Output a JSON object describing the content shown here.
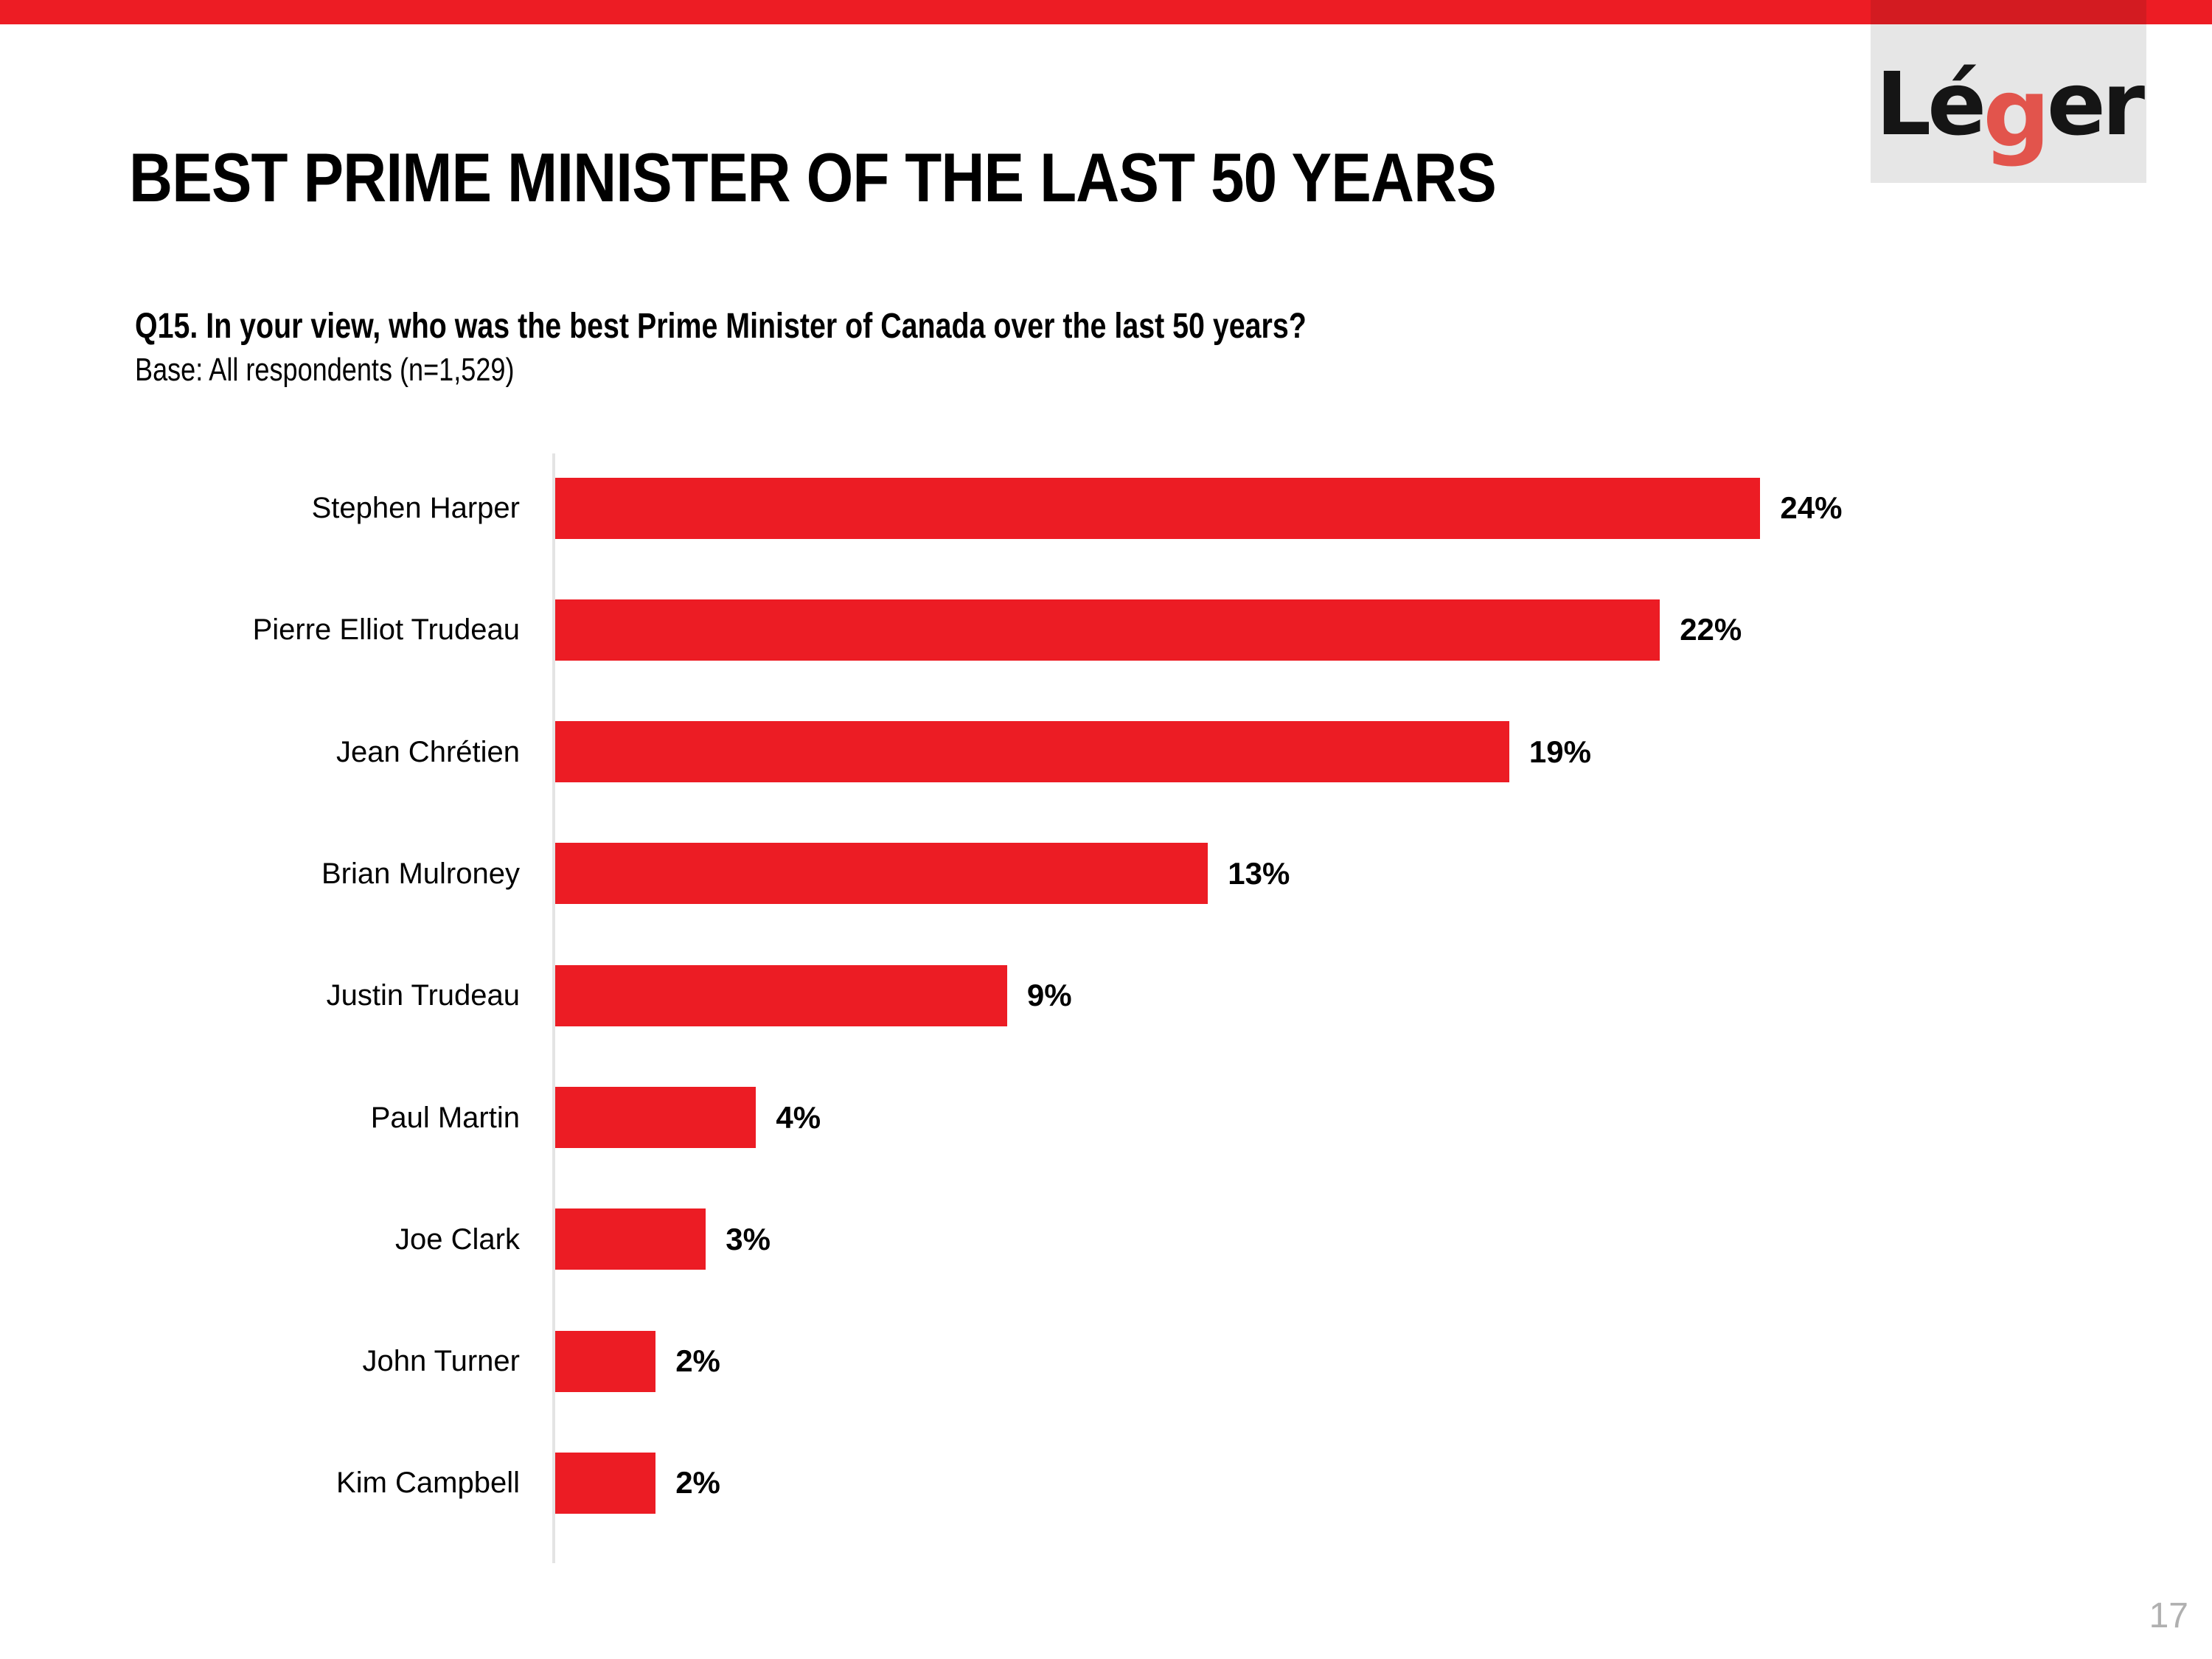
{
  "page": {
    "number": "17"
  },
  "top_banner": {
    "color": "#ED1C24"
  },
  "logo": {
    "part1": "Lé",
    "part2": "g",
    "part3": "er",
    "band_color": "#D31B21",
    "bg_color": "#E6E6E6",
    "g_color": "#E2544C",
    "text_color": "#151515"
  },
  "header": {
    "title": "BEST PRIME MINISTER OF THE LAST 50 YEARS"
  },
  "question": {
    "text": "Q15. In your view, who was the best Prime Minister of Canada over the last 50 years?",
    "base": "Base: All respondents (n=1,529)"
  },
  "chart_data": {
    "type": "bar",
    "orientation": "horizontal",
    "title": "",
    "xlabel": "",
    "ylabel": "",
    "categories": [
      "Stephen Harper",
      "Pierre Elliot Trudeau",
      "Jean Chrétien",
      "Brian Mulroney",
      "Justin Trudeau",
      "Paul Martin",
      "Joe Clark",
      "John Turner",
      "Kim Campbell"
    ],
    "values": [
      24,
      22,
      19,
      13,
      9,
      4,
      3,
      2,
      2
    ],
    "value_labels": [
      "24%",
      "22%",
      "19%",
      "13%",
      "9%",
      "4%",
      "3%",
      "2%",
      "2%"
    ],
    "xlim": [
      0,
      26
    ],
    "grid": false,
    "legend": false,
    "bar_color": "#EC1C24",
    "axis_line_color": "#E4E4E4"
  }
}
